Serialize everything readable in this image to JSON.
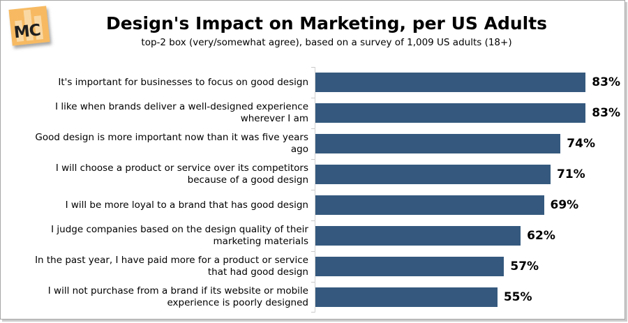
{
  "window": {
    "border_color": "#a6a6a6",
    "shadow_color": "#cccccc"
  },
  "logo": {
    "text": "MC",
    "bg_color": "#f7ba62",
    "bar_color": "#f9d8a4",
    "text_color": "#1f1f1f"
  },
  "header": {
    "title": "Design's Impact on Marketing, per US Adults",
    "subtitle": "top-2 box (very/somewhat agree), based on a survey of 1,009 US adults (18+)"
  },
  "chart_data": {
    "type": "bar",
    "orientation": "horizontal",
    "title": "Design's Impact on Marketing, per US Adults",
    "subtitle": "top-2 box (very/somewhat agree), based on a survey of 1,009 US adults (18+)",
    "categories": [
      "It's important for businesses to focus on good design",
      "I like when brands deliver a well-designed experience wherever I am",
      "Good design is more important now than it was five years ago",
      "I will choose a product or service over its competitors because of a good design",
      "I will be more loyal to a brand that has good design",
      "I judge companies based on the design quality of their marketing materials",
      "In the past year, I have paid more for a product or service that had good design",
      "I will not purchase from a brand if its website or mobile experience is poorly designed"
    ],
    "values": [
      83,
      83,
      74,
      71,
      69,
      62,
      57,
      55
    ],
    "value_suffix": "%",
    "value_labels": "end-of-bar",
    "xlabel": "",
    "ylabel": "",
    "xlim": [
      0,
      92
    ],
    "grid": false,
    "legend": "none",
    "bar_color": "#35597e",
    "axis_color": "#c9c9c9",
    "label_color": "#000000"
  }
}
